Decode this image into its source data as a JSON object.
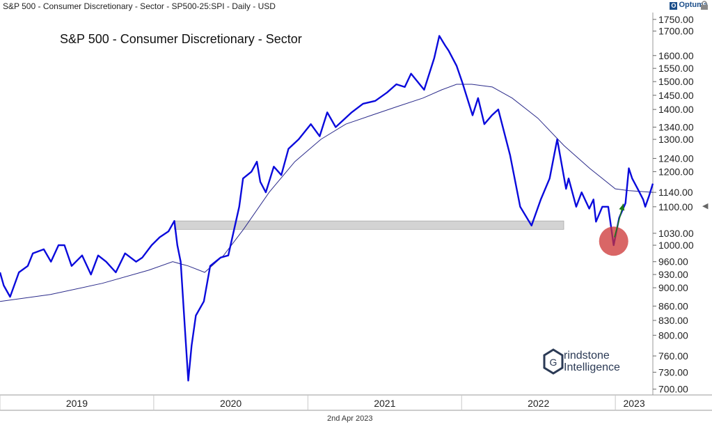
{
  "header": {
    "title": "S&P 500 - Consumer Discretionary - Sector - SP500-25:SPI - Daily - USD",
    "brand": "Optuma"
  },
  "footer": {
    "date": "2nd Apr 2023"
  },
  "watermark": {
    "line1": "rindstone",
    "line2": "Intelligence",
    "initial": "G"
  },
  "colors": {
    "price": "#0a0adc",
    "ma": "#2a2a8a",
    "zone": "#d3d3d3",
    "highlight": "#cc3333",
    "arrow": "#1a7a1a",
    "grid": "#c8c8c8"
  },
  "chart_data": {
    "type": "line",
    "title": "S&P 500 - Consumer Discretionary - Sector",
    "y_scale": "log",
    "ylim": [
      690,
      1780
    ],
    "y_ticks": [
      1750,
      1700,
      1600,
      1550,
      1500,
      1450,
      1400,
      1340,
      1300,
      1240,
      1200,
      1140,
      1100,
      1030,
      1000,
      960,
      930,
      900,
      860,
      830,
      800,
      760,
      730,
      700
    ],
    "y_tick_labels": [
      "1750.00",
      "1700.00",
      "1600.00",
      "1550.00",
      "1500.00",
      "1450.00",
      "1400.00",
      "1340.00",
      "1300.00",
      "1240.00",
      "1200.00",
      "1140.00",
      "1100.00",
      "1030.00",
      "1000.00",
      "960.00",
      "930.00",
      "900.00",
      "860.00",
      "830.00",
      "800.00",
      "760.00",
      "730.00",
      "700.00"
    ],
    "x_labels": [
      "2019",
      "2020",
      "2021",
      "2022",
      "2023"
    ],
    "xlim": [
      "2019-01-01",
      "2023-03-31"
    ],
    "x_label_dates": [
      "2019-01-01",
      "2020-01-01",
      "2021-01-01",
      "2022-01-01",
      "2023-01-01"
    ],
    "support_zone": {
      "low": 1040,
      "high": 1062,
      "from": "2020-02-19",
      "to": "2023-03-31"
    },
    "highlight_point": {
      "x": "2022-12-28",
      "y": 1010
    },
    "arrow": {
      "from": {
        "x": "2022-12-30",
        "y": 1020
      },
      "to": {
        "x": "2023-01-20",
        "y": 1108
      }
    },
    "series": [
      {
        "role": "price",
        "x": [
          "2019-01-01",
          "2019-01-10",
          "2019-01-25",
          "2019-02-15",
          "2019-03-08",
          "2019-03-20",
          "2019-04-15",
          "2019-05-02",
          "2019-05-20",
          "2019-06-03",
          "2019-06-20",
          "2019-07-15",
          "2019-08-05",
          "2019-08-22",
          "2019-09-10",
          "2019-10-03",
          "2019-10-25",
          "2019-11-20",
          "2019-12-05",
          "2019-12-27",
          "2020-01-15",
          "2020-02-05",
          "2020-02-19",
          "2020-02-26",
          "2020-03-05",
          "2020-03-16",
          "2020-03-23",
          "2020-03-31",
          "2020-04-10",
          "2020-04-29",
          "2020-05-14",
          "2020-06-08",
          "2020-06-26",
          "2020-07-22",
          "2020-07-31",
          "2020-08-20",
          "2020-09-02",
          "2020-09-10",
          "2020-09-23",
          "2020-10-12",
          "2020-10-30",
          "2020-11-16",
          "2020-12-10",
          "2021-01-08",
          "2021-01-29",
          "2021-02-16",
          "2021-03-08",
          "2021-04-15",
          "2021-05-12",
          "2021-06-10",
          "2021-07-08",
          "2021-07-30",
          "2021-08-19",
          "2021-09-03",
          "2021-10-04",
          "2021-10-28",
          "2021-11-09",
          "2021-11-23",
          "2021-12-01",
          "2021-12-20",
          "2022-01-03",
          "2022-01-27",
          "2022-02-09",
          "2022-02-24",
          "2022-03-14",
          "2022-03-29",
          "2022-04-26",
          "2022-05-20",
          "2022-06-16",
          "2022-07-08",
          "2022-07-29",
          "2022-08-16",
          "2022-09-06",
          "2022-09-12",
          "2022-09-30",
          "2022-10-13",
          "2022-10-31",
          "2022-11-10",
          "2022-11-16",
          "2022-12-01",
          "2022-12-15",
          "2022-12-28",
          "2023-01-10",
          "2023-01-25",
          "2023-02-02",
          "2023-02-10",
          "2023-02-23",
          "2023-03-08",
          "2023-03-13",
          "2023-03-22",
          "2023-03-31"
        ],
        "y": [
          935,
          905,
          880,
          935,
          950,
          980,
          990,
          960,
          1000,
          1000,
          950,
          975,
          930,
          975,
          960,
          935,
          980,
          960,
          970,
          1000,
          1020,
          1035,
          1062,
          1000,
          960,
          800,
          715,
          780,
          840,
          870,
          950,
          970,
          975,
          1100,
          1180,
          1200,
          1230,
          1170,
          1140,
          1215,
          1190,
          1270,
          1300,
          1350,
          1310,
          1390,
          1340,
          1390,
          1420,
          1430,
          1460,
          1490,
          1480,
          1530,
          1470,
          1590,
          1680,
          1640,
          1620,
          1560,
          1495,
          1380,
          1440,
          1350,
          1380,
          1400,
          1250,
          1100,
          1050,
          1120,
          1180,
          1300,
          1150,
          1180,
          1100,
          1140,
          1095,
          1120,
          1060,
          1100,
          1100,
          1000,
          1070,
          1110,
          1210,
          1180,
          1150,
          1120,
          1100,
          1130,
          1165
        ]
      },
      {
        "role": "moving-average",
        "x": [
          "2019-01-01",
          "2019-05-01",
          "2019-09-01",
          "2019-12-20",
          "2020-02-15",
          "2020-03-23",
          "2020-05-01",
          "2020-06-15",
          "2020-08-01",
          "2020-10-01",
          "2020-12-01",
          "2021-02-01",
          "2021-04-01",
          "2021-06-01",
          "2021-08-01",
          "2021-10-01",
          "2021-11-15",
          "2021-12-20",
          "2022-01-25",
          "2022-03-15",
          "2022-05-01",
          "2022-07-01",
          "2022-09-01",
          "2022-11-01",
          "2023-01-01",
          "2023-02-01",
          "2023-03-31"
        ],
        "y": [
          870,
          885,
          910,
          940,
          960,
          950,
          935,
          975,
          1040,
          1140,
          1230,
          1300,
          1350,
          1380,
          1410,
          1440,
          1470,
          1490,
          1490,
          1480,
          1440,
          1370,
          1280,
          1210,
          1150,
          1145,
          1140
        ]
      }
    ]
  }
}
